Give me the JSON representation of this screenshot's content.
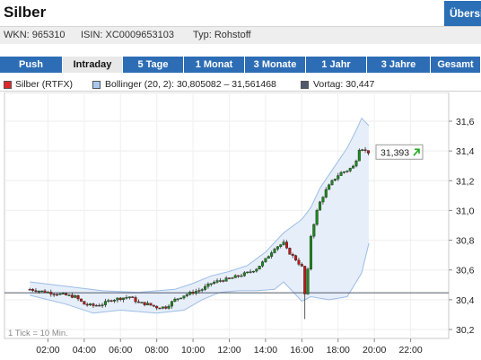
{
  "header": {
    "title": "Silber",
    "ubers_label": "Übersicht"
  },
  "meta": {
    "wkn": "WKN: 965310",
    "isin": "ISIN: XC0009653103",
    "type": "Typ: Rohstoff"
  },
  "tabs": [
    {
      "label": "Push",
      "active": false
    },
    {
      "label": "Intraday",
      "active": true
    },
    {
      "label": "5 Tage",
      "active": false
    },
    {
      "label": "1 Monat",
      "active": false
    },
    {
      "label": "3 Monate",
      "active": false
    },
    {
      "label": "1 Jahr",
      "active": false
    },
    {
      "label": "3 Jahre",
      "active": false
    },
    {
      "label": "Gesamt",
      "active": false
    }
  ],
  "legend": [
    {
      "label": "Silber (RTFX)",
      "color": "#e0282a"
    },
    {
      "label": "Bollinger (20, 2): 30,805082 – 31,561468",
      "color": "#a8c8ee"
    },
    {
      "label": "Vortag: 30,447",
      "color": "#505a6a"
    }
  ],
  "chart_data": {
    "type": "candlestick",
    "x_tick_labels": [
      "02:00",
      "04:00",
      "06:00",
      "08:00",
      "10:00",
      "12:00",
      "14:00",
      "16:00",
      "18:00",
      "20:00",
      "22:00"
    ],
    "y_tick_labels": [
      "30,2",
      "30,4",
      "30,6",
      "30,8",
      "31,0",
      "31,2",
      "31,4",
      "31,6"
    ],
    "x_range_hours": [
      0,
      24
    ],
    "ylim": [
      30.2,
      31.6
    ],
    "previous_close": 30.447,
    "last_value_label": "31,393",
    "last_value": 31.393,
    "tick_note": "1 Tick = 10 Min.",
    "price_path": [
      [
        1.0,
        30.47
      ],
      [
        1.5,
        30.46
      ],
      [
        2.0,
        30.45
      ],
      [
        2.5,
        30.44
      ],
      [
        3.0,
        30.43
      ],
      [
        3.5,
        30.42
      ],
      [
        4.0,
        30.37
      ],
      [
        4.5,
        30.36
      ],
      [
        5.0,
        30.37
      ],
      [
        5.5,
        30.4
      ],
      [
        6.0,
        30.41
      ],
      [
        6.5,
        30.42
      ],
      [
        7.0,
        30.38
      ],
      [
        7.5,
        30.37
      ],
      [
        8.0,
        30.35
      ],
      [
        8.5,
        30.35
      ],
      [
        9.0,
        30.4
      ],
      [
        9.5,
        30.43
      ],
      [
        10.0,
        30.45
      ],
      [
        10.5,
        30.47
      ],
      [
        11.0,
        30.51
      ],
      [
        11.5,
        30.53
      ],
      [
        12.0,
        30.54
      ],
      [
        12.5,
        30.56
      ],
      [
        13.0,
        30.58
      ],
      [
        13.5,
        30.61
      ],
      [
        14.0,
        30.67
      ],
      [
        14.5,
        30.75
      ],
      [
        15.0,
        30.78
      ],
      [
        15.2,
        30.73
      ],
      [
        15.6,
        30.68
      ],
      [
        16.0,
        30.62
      ],
      [
        16.1,
        30.38
      ],
      [
        16.3,
        30.55
      ],
      [
        16.5,
        30.83
      ],
      [
        16.9,
        31.03
      ],
      [
        17.3,
        31.13
      ],
      [
        17.7,
        31.2
      ],
      [
        18.1,
        31.25
      ],
      [
        18.5,
        31.27
      ],
      [
        18.9,
        31.3
      ],
      [
        19.2,
        31.43
      ],
      [
        19.5,
        31.4
      ],
      [
        19.7,
        31.39
      ]
    ],
    "bollinger_upper": [
      [
        1.0,
        30.52
      ],
      [
        3.0,
        30.49
      ],
      [
        5.0,
        30.46
      ],
      [
        7.0,
        30.45
      ],
      [
        9.0,
        30.47
      ],
      [
        10.0,
        30.51
      ],
      [
        11.0,
        30.56
      ],
      [
        12.0,
        30.59
      ],
      [
        13.0,
        30.63
      ],
      [
        14.0,
        30.72
      ],
      [
        15.0,
        30.85
      ],
      [
        16.0,
        30.94
      ],
      [
        16.5,
        31.02
      ],
      [
        17.0,
        31.15
      ],
      [
        17.5,
        31.24
      ],
      [
        18.0,
        31.33
      ],
      [
        18.5,
        31.42
      ],
      [
        19.0,
        31.54
      ],
      [
        19.3,
        31.62
      ],
      [
        19.7,
        31.57
      ]
    ],
    "bollinger_lower": [
      [
        1.0,
        30.43
      ],
      [
        3.0,
        30.37
      ],
      [
        4.5,
        30.31
      ],
      [
        6.0,
        30.33
      ],
      [
        8.0,
        30.31
      ],
      [
        9.5,
        30.33
      ],
      [
        10.5,
        30.4
      ],
      [
        11.5,
        30.45
      ],
      [
        12.5,
        30.46
      ],
      [
        13.5,
        30.46
      ],
      [
        14.5,
        30.47
      ],
      [
        15.0,
        30.52
      ],
      [
        16.0,
        30.39
      ],
      [
        16.5,
        30.42
      ],
      [
        17.5,
        30.4
      ],
      [
        18.5,
        30.42
      ],
      [
        19.3,
        30.58
      ],
      [
        19.7,
        30.78
      ]
    ],
    "colors": {
      "up": "#1a8a1a",
      "down": "#c01818",
      "band_fill": "#e6eef9",
      "band_line": "#9cbde6",
      "prev_line": "#505a6a"
    }
  }
}
